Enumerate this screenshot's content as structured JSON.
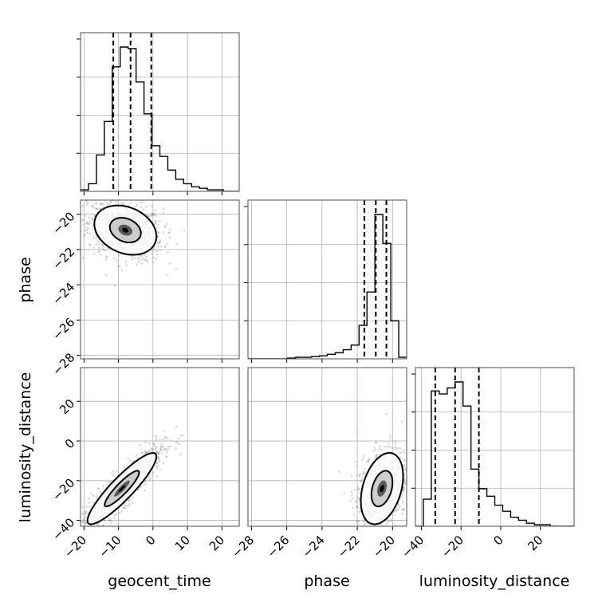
{
  "chart_data": {
    "type": "corner",
    "parameters": [
      "geocent_time",
      "phase",
      "luminosity_distance"
    ],
    "axis_labels": {
      "geocent_time": "geocent_time",
      "phase": "phase",
      "luminosity_distance": "luminosity_distance"
    },
    "ranges": {
      "geocent_time": [
        -21,
        25
      ],
      "phase": [
        -28.2,
        -19.2
      ],
      "luminosity_distance": [
        -43,
        37
      ]
    },
    "ticks": {
      "geocent_time": [
        -20,
        -10,
        0,
        10,
        20
      ],
      "phase": [
        -28,
        -26,
        -24,
        -22,
        -20
      ],
      "luminosity_distance": [
        -40,
        -20,
        0,
        20
      ]
    },
    "quantiles": {
      "geocent_time": [
        -11.5,
        -6.5,
        -0.5
      ],
      "phase": [
        -21.6,
        -20.95,
        -20.35
      ],
      "luminosity_distance": [
        -33,
        -23,
        -11
      ]
    },
    "histograms": {
      "geocent_time": {
        "edges": [
          -21,
          -18.7,
          -16.4,
          -14.1,
          -11.8,
          -9.5,
          -7.2,
          -4.9,
          -2.6,
          -0.3,
          2.0,
          4.3,
          6.6,
          8.9,
          11.2,
          13.5,
          15.8,
          18.1,
          20.4,
          22.7,
          25
        ],
        "counts": [
          0.01,
          0.05,
          0.24,
          0.46,
          0.82,
          0.95,
          0.94,
          0.72,
          0.51,
          0.3,
          0.23,
          0.14,
          0.08,
          0.05,
          0.03,
          0.02,
          0.01,
          0.01,
          0.0,
          0.0
        ]
      },
      "phase": {
        "edges": [
          -28.2,
          -27.75,
          -27.3,
          -26.85,
          -26.4,
          -25.95,
          -25.5,
          -25.05,
          -24.6,
          -24.15,
          -23.7,
          -23.25,
          -22.8,
          -22.35,
          -21.9,
          -21.45,
          -21.0,
          -20.55,
          -20.1,
          -19.65,
          -19.2
        ],
        "counts": [
          0.0,
          0.0,
          0.0,
          0.0,
          0.0,
          0.005,
          0.01,
          0.01,
          0.015,
          0.02,
          0.03,
          0.04,
          0.06,
          0.09,
          0.22,
          0.44,
          0.95,
          0.76,
          0.25,
          0.01
        ]
      },
      "luminosity_distance": {
        "edges": [
          -43,
          -39,
          -35,
          -31,
          -27,
          -23,
          -19,
          -15,
          -11,
          -7,
          -3,
          1,
          5,
          9,
          13,
          17,
          21,
          25,
          29,
          33,
          37
        ],
        "counts": [
          0.0,
          0.18,
          0.9,
          0.88,
          0.92,
          0.96,
          0.8,
          0.38,
          0.25,
          0.2,
          0.14,
          0.1,
          0.06,
          0.04,
          0.02,
          0.01,
          0.01,
          0.0,
          0.0,
          0.0
        ]
      }
    },
    "joint_2d": [
      {
        "x": "geocent_time",
        "y": "phase",
        "center": [
          -8,
          -20.9
        ],
        "sigma": [
          4.5,
          0.7
        ],
        "rho": -0.25,
        "contour_levels": [
          1.0,
          2.0
        ]
      },
      {
        "x": "geocent_time",
        "y": "luminosity_distance",
        "center": [
          -9,
          -24
        ],
        "sigma": [
          5,
          9
        ],
        "rho": 0.9,
        "contour_levels": [
          1.0,
          2.0
        ]
      },
      {
        "x": "phase",
        "y": "luminosity_distance",
        "center": [
          -20.6,
          -24
        ],
        "sigma": [
          0.6,
          9
        ],
        "rho": 0.35,
        "contour_levels": [
          1.0,
          2.0
        ]
      }
    ],
    "grid": true,
    "colors": {
      "density": "#000000",
      "points": "#8c8c8c",
      "grid": "#b0b0b0"
    }
  }
}
